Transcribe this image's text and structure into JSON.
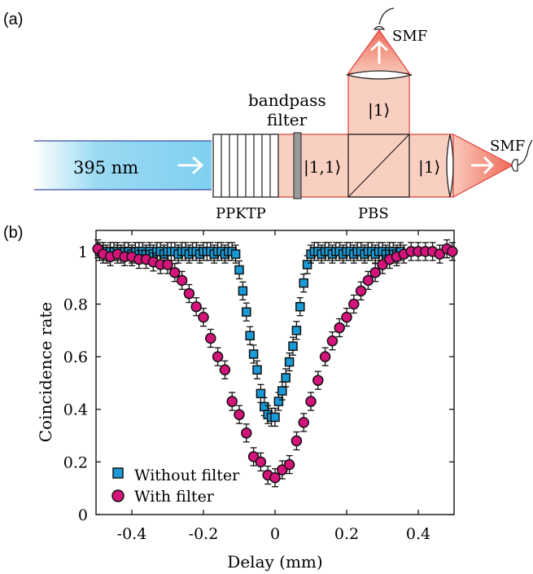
{
  "panel_a": {
    "label": "(a)",
    "pump_label": "395 nm",
    "crystal_label": "PPKTP",
    "filter_label_line1": "bandpass",
    "filter_label_line2": "filter",
    "state_11": "|1,1⟩",
    "state_1_top": "|1⟩",
    "state_1_right": "|1⟩",
    "pbs_label": "PBS",
    "smf_top": "SMF",
    "smf_right": "SMF",
    "colors": {
      "pump": "#7fd0ef",
      "photon_beam": "#f7c7b8",
      "beam_edge": "#e0403a",
      "arrow": "#ffffff"
    }
  },
  "panel_b": {
    "label": "(b)"
  },
  "chart_data": {
    "type": "scatter",
    "xlabel": "Delay (mm)",
    "ylabel": "Coincidence rate",
    "xlim": [
      -0.5,
      0.5
    ],
    "ylim": [
      0,
      1.08
    ],
    "xticks": [
      -0.4,
      -0.2,
      0,
      0.2,
      0.4
    ],
    "xtick_labels": [
      "-0.4",
      "-0.2",
      "0",
      "0.2",
      "0.4"
    ],
    "yticks": [
      0,
      0.2,
      0.4,
      0.6,
      0.8,
      1
    ],
    "ytick_labels": [
      "0",
      "0.2",
      "0.4",
      "0.6",
      "0.8",
      "1"
    ],
    "legend_position": "bottom-left",
    "series": [
      {
        "name": "Without filter",
        "marker": "square",
        "color": "#1a9ad6",
        "x": [
          -0.49,
          -0.48,
          -0.47,
          -0.46,
          -0.45,
          -0.44,
          -0.43,
          -0.42,
          -0.41,
          -0.4,
          -0.39,
          -0.38,
          -0.37,
          -0.36,
          -0.35,
          -0.34,
          -0.33,
          -0.32,
          -0.31,
          -0.3,
          -0.29,
          -0.28,
          -0.27,
          -0.26,
          -0.25,
          -0.24,
          -0.23,
          -0.22,
          -0.21,
          -0.2,
          -0.19,
          -0.18,
          -0.17,
          -0.16,
          -0.15,
          -0.14,
          -0.13,
          -0.12,
          -0.11,
          -0.1,
          -0.09,
          -0.08,
          -0.07,
          -0.06,
          -0.05,
          -0.04,
          -0.03,
          -0.02,
          -0.01,
          0.0,
          0.01,
          0.02,
          0.03,
          0.04,
          0.05,
          0.06,
          0.07,
          0.08,
          0.09,
          0.1,
          0.11,
          0.12,
          0.13,
          0.14,
          0.15,
          0.16,
          0.17,
          0.18,
          0.19,
          0.2,
          0.21,
          0.22,
          0.23,
          0.24,
          0.25,
          0.26,
          0.27,
          0.28,
          0.29,
          0.3,
          0.31,
          0.32,
          0.33,
          0.34,
          0.35
        ],
        "y": [
          1.0,
          1.0,
          0.99,
          1.0,
          1.0,
          1.0,
          0.99,
          1.0,
          1.0,
          0.99,
          1.0,
          1.0,
          1.0,
          0.99,
          1.0,
          0.99,
          1.0,
          1.0,
          0.99,
          1.0,
          1.0,
          1.0,
          0.99,
          1.0,
          1.0,
          0.99,
          1.0,
          1.0,
          0.99,
          1.0,
          1.0,
          1.0,
          0.99,
          1.0,
          1.0,
          0.99,
          1.0,
          1.0,
          0.99,
          0.93,
          0.85,
          0.77,
          0.68,
          0.61,
          0.55,
          0.46,
          0.41,
          0.38,
          0.37,
          0.37,
          0.43,
          0.47,
          0.52,
          0.58,
          0.64,
          0.7,
          0.79,
          0.88,
          0.95,
          0.99,
          1.0,
          1.0,
          0.99,
          1.0,
          1.0,
          0.99,
          1.0,
          1.0,
          0.99,
          1.0,
          1.0,
          0.99,
          1.0,
          1.0,
          0.99,
          1.0,
          1.0,
          0.99,
          1.0,
          1.0,
          0.99,
          1.0,
          1.0,
          0.99,
          1.0
        ]
      },
      {
        "name": "With filter",
        "marker": "circle",
        "color": "#d4147a",
        "x": [
          -0.495,
          -0.48,
          -0.46,
          -0.44,
          -0.42,
          -0.4,
          -0.38,
          -0.36,
          -0.34,
          -0.32,
          -0.3,
          -0.28,
          -0.26,
          -0.24,
          -0.22,
          -0.2,
          -0.18,
          -0.16,
          -0.14,
          -0.12,
          -0.1,
          -0.08,
          -0.06,
          -0.04,
          -0.02,
          0.0,
          0.02,
          0.04,
          0.06,
          0.08,
          0.1,
          0.12,
          0.14,
          0.16,
          0.18,
          0.2,
          0.22,
          0.24,
          0.26,
          0.28,
          0.3,
          0.32,
          0.34,
          0.36,
          0.38,
          0.4,
          0.42,
          0.44,
          0.46,
          0.48,
          0.495
        ],
        "y": [
          1.01,
          0.99,
          0.98,
          0.99,
          0.98,
          0.98,
          0.97,
          0.97,
          0.96,
          0.95,
          0.95,
          0.92,
          0.89,
          0.84,
          0.79,
          0.75,
          0.67,
          0.6,
          0.55,
          0.43,
          0.38,
          0.31,
          0.22,
          0.2,
          0.15,
          0.14,
          0.17,
          0.19,
          0.28,
          0.35,
          0.43,
          0.51,
          0.6,
          0.66,
          0.71,
          0.75,
          0.8,
          0.85,
          0.89,
          0.92,
          0.95,
          0.97,
          0.98,
          0.99,
          1.0,
          1.0,
          1.0,
          1.0,
          0.99,
          1.01,
          1.0
        ]
      }
    ]
  }
}
